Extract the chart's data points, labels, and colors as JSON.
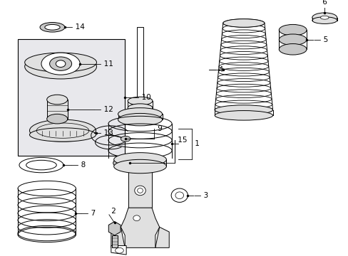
{
  "bg_color": "#ffffff",
  "line_color": "#000000",
  "gray_fill": "#c8c8c8",
  "light_gray": "#e0e0e0",
  "box_fill": "#e8e8ec",
  "font_size": 7.5,
  "fig_w": 4.89,
  "fig_h": 3.6,
  "dpi": 100
}
